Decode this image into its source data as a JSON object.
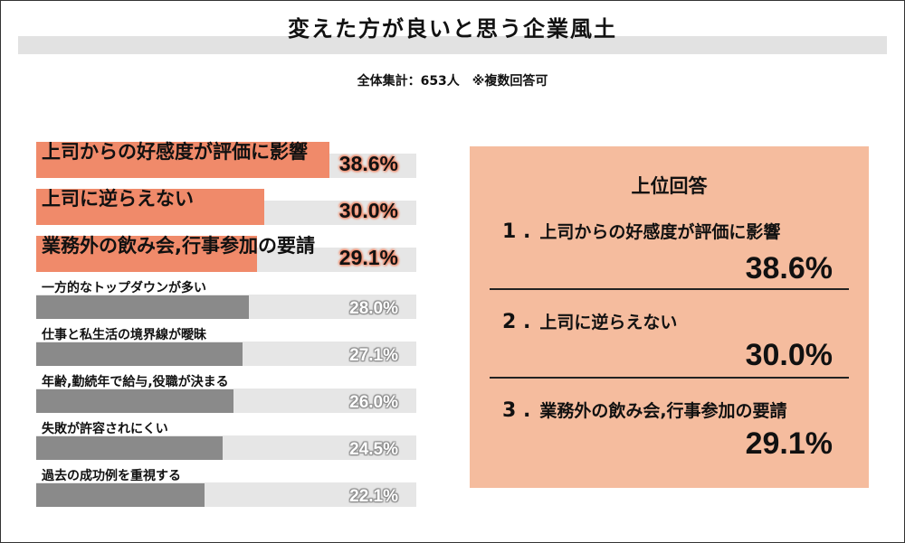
{
  "title": "変えた方が良いと思う企業風土",
  "subtitle": "全体集計：653人　※複数回答可",
  "colors": {
    "highlight_bar": "#f08a6a",
    "other_bar": "#8a8a8a",
    "track": "#e6e6e6",
    "panel_bg": "#f5bc9e"
  },
  "chart_data": {
    "type": "bar",
    "orientation": "horizontal",
    "unit": "%",
    "xlim": [
      0,
      50
    ],
    "highlight_top_n": 3,
    "categories": [
      "上司からの好感度が評価に影響",
      "上司に逆らえない",
      "業務外の飲み会,行事参加の要請",
      "一方的なトップダウンが多い",
      "仕事と私生活の境界線が曖昧",
      "年齢,勤続年で給与,役職が決まる",
      "失敗が許容されにくい",
      "過去の成功例を重視する"
    ],
    "values": [
      38.6,
      30.0,
      29.1,
      28.0,
      27.1,
      26.0,
      24.5,
      22.1
    ],
    "value_labels": [
      "38.6%",
      "30.0%",
      "29.1%",
      "28.0%",
      "27.1%",
      "26.0%",
      "24.5%",
      "22.1%"
    ]
  },
  "panel": {
    "heading": "上位回答",
    "ranks": [
      {
        "number": "1 .",
        "label": "上司からの好感度が評価に影響",
        "value": "38.6%"
      },
      {
        "number": "2 .",
        "label": "上司に逆らえない",
        "value": "30.0%"
      },
      {
        "number": "3 .",
        "label": "業務外の飲み会,行事参加の要請",
        "value": "29.1%"
      }
    ]
  }
}
